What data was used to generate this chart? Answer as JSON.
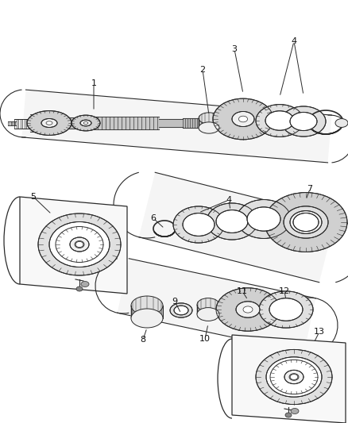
{
  "bg_color": "#ffffff",
  "line_color": "#2a2a2a",
  "fig_width": 4.38,
  "fig_height": 5.33,
  "dpi": 100,
  "shaft_color": "#c8c8c8",
  "gear_fill": "#d0d0d0",
  "ring_fill": "#e0e0e0",
  "light_fill": "#f0f0f0"
}
